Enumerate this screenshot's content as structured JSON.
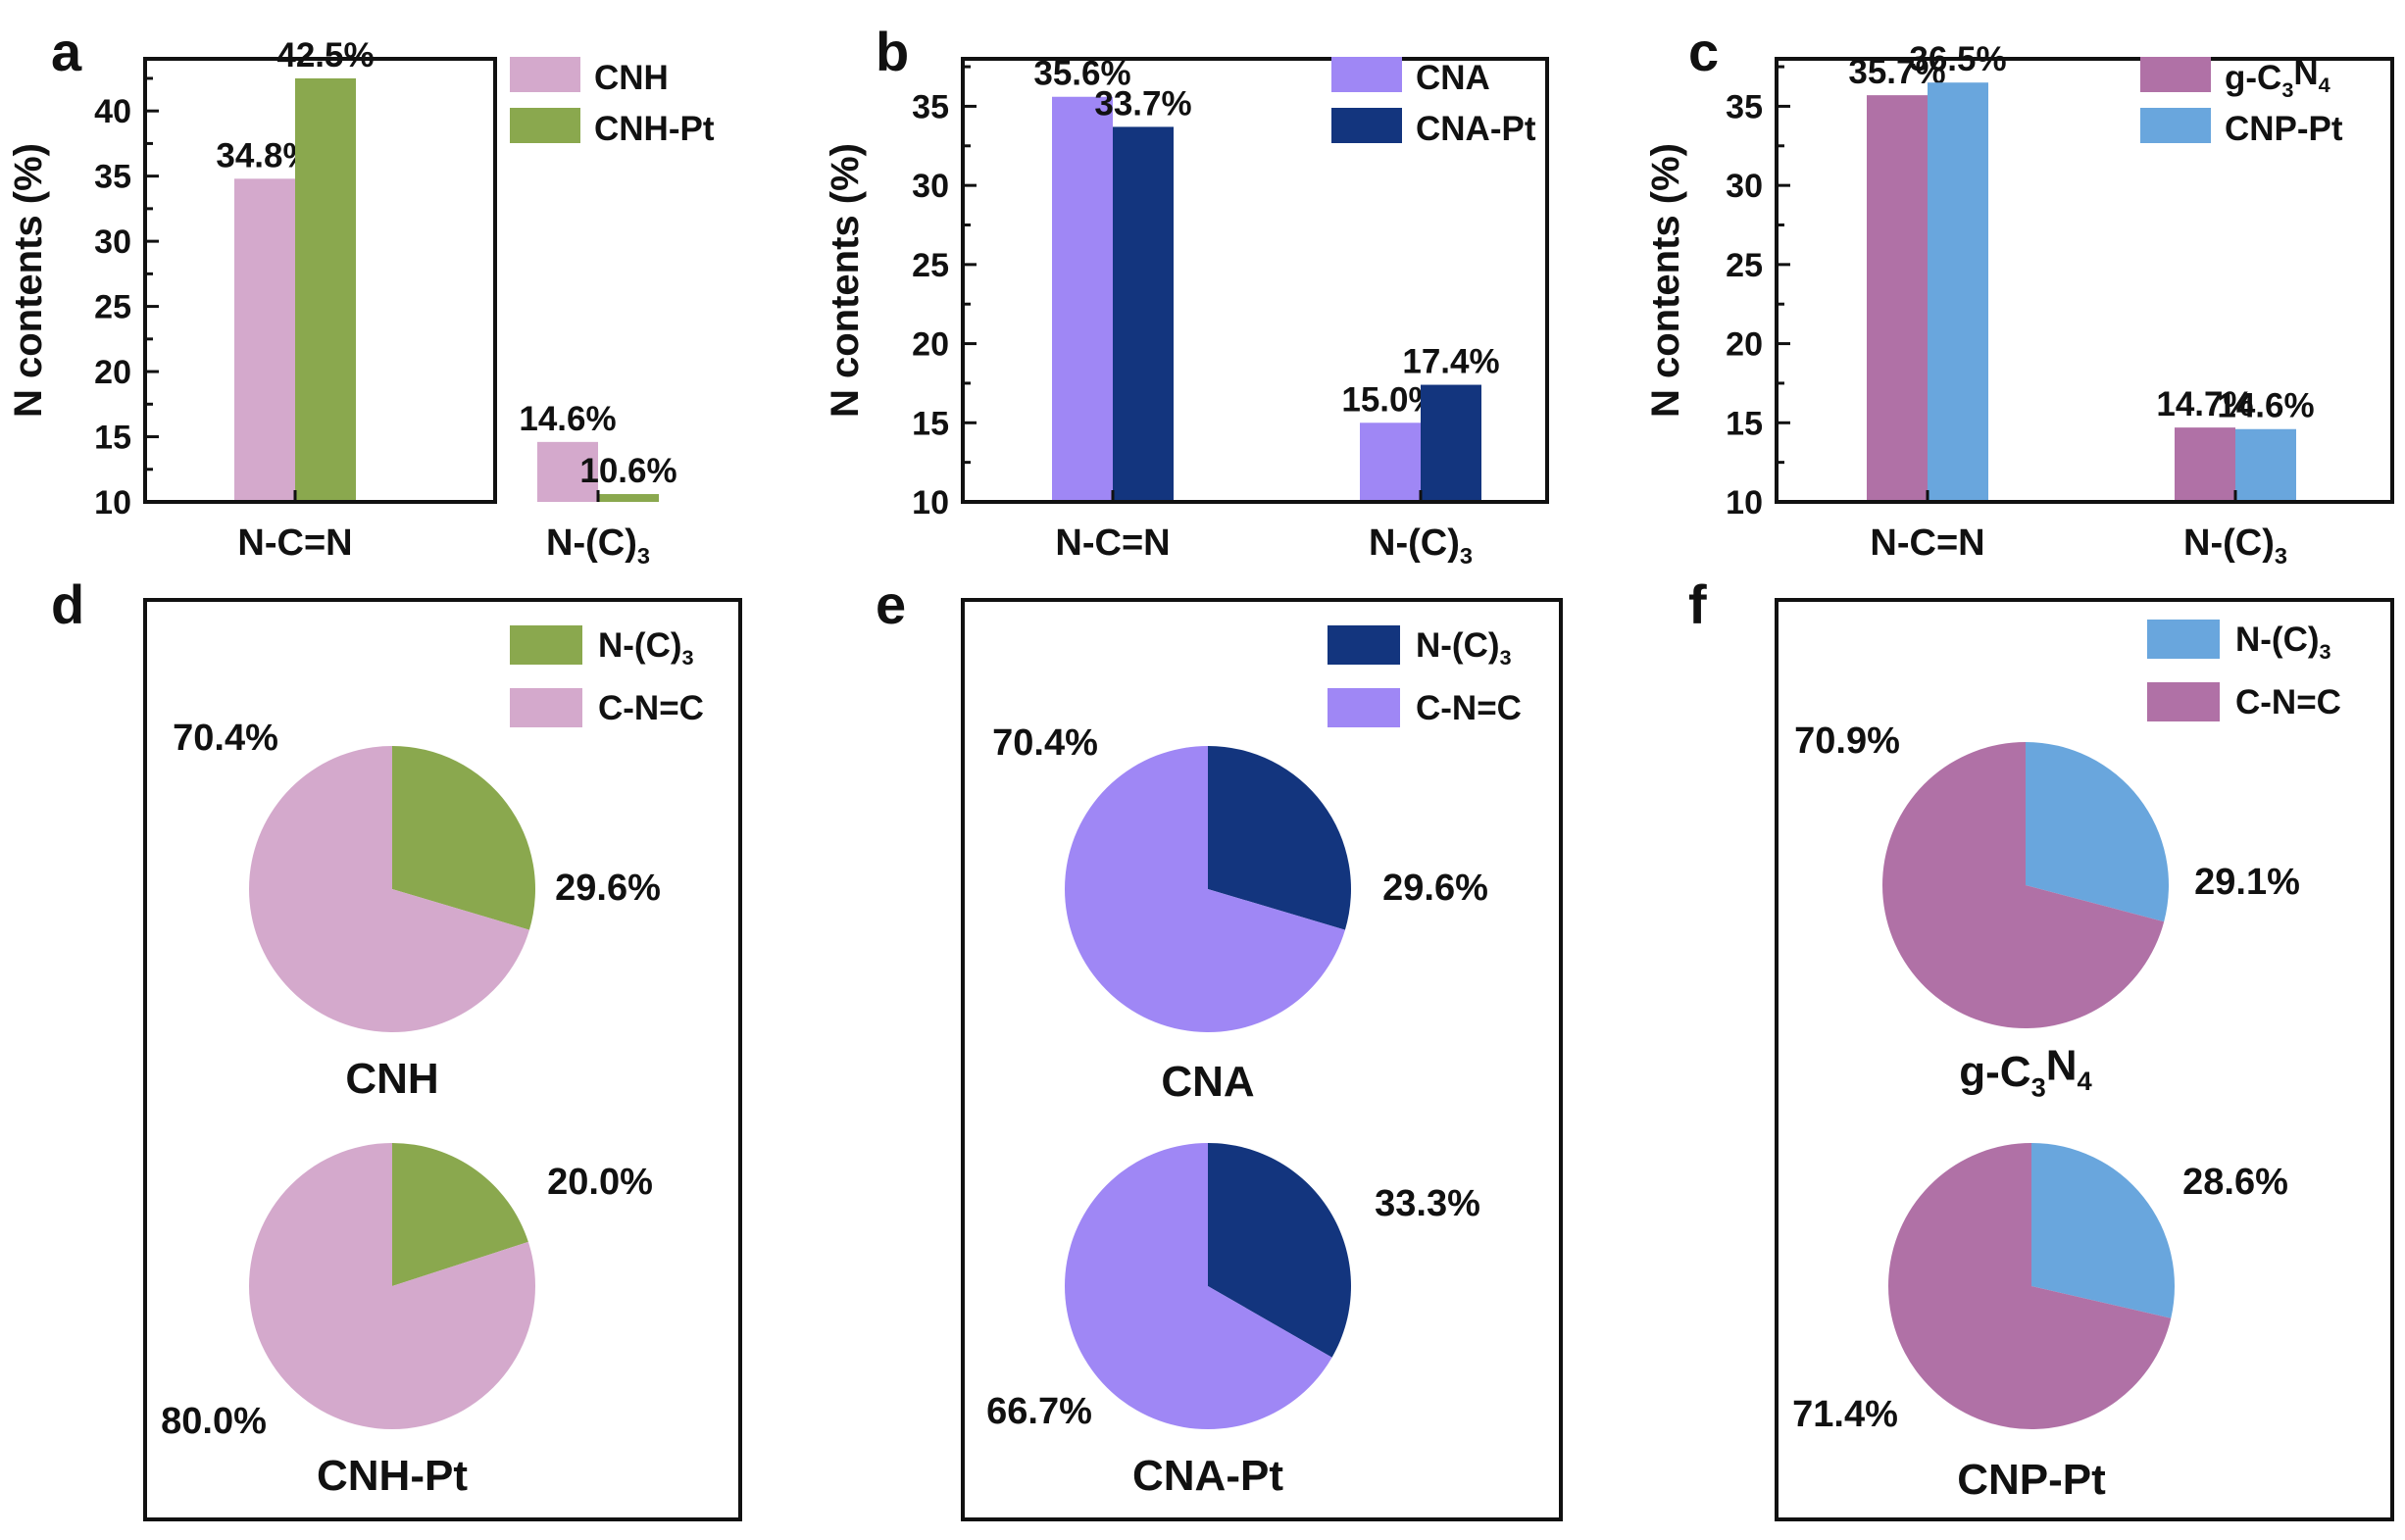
{
  "colors": {
    "CNH": "#d4a9cc",
    "CNH_Pt": "#8aa84e",
    "CNA": "#9f87f5",
    "CNA_Pt": "#13357e",
    "gC3N4": "#b071a6",
    "CNP_Pt": "#69a6dd"
  },
  "chart_data": [
    {
      "id": "a",
      "type": "bar",
      "panel_label": "a",
      "ylabel": "N contents (%)",
      "ylim": [
        10,
        44
      ],
      "yticks": [
        10,
        15,
        20,
        25,
        30,
        35,
        40
      ],
      "categories": [
        "N-C=N",
        "N-(C)3"
      ],
      "category_labels": [
        {
          "main": "N-C=N",
          "sub": ""
        },
        {
          "main": "N-(C)",
          "sub": "3"
        }
      ],
      "series": [
        {
          "name": "CNH",
          "legend": {
            "main": "CNH"
          },
          "color": "#d4a9cc",
          "values": [
            34.8,
            14.6
          ],
          "labels": [
            "34.8%",
            "14.6%"
          ]
        },
        {
          "name": "CNH-Pt",
          "legend": {
            "main": "CNH-Pt"
          },
          "color": "#8aa84e",
          "values": [
            42.5,
            10.6
          ],
          "labels": [
            "42.5%",
            "10.6%"
          ]
        }
      ]
    },
    {
      "id": "b",
      "type": "bar",
      "panel_label": "b",
      "ylabel": "N contents (%)",
      "ylim": [
        10,
        38
      ],
      "yticks": [
        10,
        15,
        20,
        25,
        30,
        35
      ],
      "categories": [
        "N-C=N",
        "N-(C)3"
      ],
      "category_labels": [
        {
          "main": "N-C=N",
          "sub": ""
        },
        {
          "main": "N-(C)",
          "sub": "3"
        }
      ],
      "series": [
        {
          "name": "CNA",
          "legend": {
            "main": "CNA"
          },
          "color": "#9f87f5",
          "values": [
            35.6,
            15.0
          ],
          "labels": [
            "35.6%",
            "15.0%"
          ]
        },
        {
          "name": "CNA-Pt",
          "legend": {
            "main": "CNA-Pt"
          },
          "color": "#13357e",
          "values": [
            33.7,
            17.4
          ],
          "labels": [
            "33.7%",
            "17.4%"
          ]
        }
      ]
    },
    {
      "id": "c",
      "type": "bar",
      "panel_label": "c",
      "ylabel": "N contents (%)",
      "ylim": [
        10,
        38
      ],
      "yticks": [
        10,
        15,
        20,
        25,
        30,
        35
      ],
      "categories": [
        "N-C=N",
        "N-(C)3"
      ],
      "category_labels": [
        {
          "main": "N-C=N",
          "sub": ""
        },
        {
          "main": "N-(C)",
          "sub": "3"
        }
      ],
      "series": [
        {
          "name": "g-C3N4",
          "legend": {
            "main": "g-C",
            "sub": "3",
            "main2": "N",
            "sub2": "4"
          },
          "color": "#b071a6",
          "values": [
            35.7,
            14.7
          ],
          "labels": [
            "35.7%",
            "14.7%"
          ]
        },
        {
          "name": "CNP-Pt",
          "legend": {
            "main": "CNP-Pt"
          },
          "color": "#69a6dd",
          "values": [
            36.5,
            14.6
          ],
          "labels": [
            "36.5%",
            "14.6%"
          ]
        }
      ]
    },
    {
      "id": "d",
      "type": "pie",
      "panel_label": "d",
      "legend": [
        {
          "name": "N-(C)3",
          "main": "N-(C)",
          "sub": "3",
          "color": "#8aa84e"
        },
        {
          "name": "C-N=C",
          "main": "C-N=C",
          "color": "#d4a9cc"
        }
      ],
      "pies": [
        {
          "title": {
            "main": "CNH"
          },
          "slices": [
            {
              "name": "N-(C)3",
              "value": 29.6,
              "label": "29.6%",
              "color": "#8aa84e"
            },
            {
              "name": "C-N=C",
              "value": 70.4,
              "label": "70.4%",
              "color": "#d4a9cc"
            }
          ]
        },
        {
          "title": {
            "main": "CNH-Pt"
          },
          "slices": [
            {
              "name": "N-(C)3",
              "value": 20.0,
              "label": "20.0%",
              "color": "#8aa84e"
            },
            {
              "name": "C-N=C",
              "value": 80.0,
              "label": "80.0%",
              "color": "#d4a9cc"
            }
          ]
        }
      ]
    },
    {
      "id": "e",
      "type": "pie",
      "panel_label": "e",
      "legend": [
        {
          "name": "N-(C)3",
          "main": "N-(C)",
          "sub": "3",
          "color": "#13357e"
        },
        {
          "name": "C-N=C",
          "main": "C-N=C",
          "color": "#9f87f5"
        }
      ],
      "pies": [
        {
          "title": {
            "main": "CNA"
          },
          "slices": [
            {
              "name": "N-(C)3",
              "value": 29.6,
              "label": "29.6%",
              "color": "#13357e"
            },
            {
              "name": "C-N=C",
              "value": 70.4,
              "label": "70.4%",
              "color": "#9f87f5"
            }
          ]
        },
        {
          "title": {
            "main": "CNA-Pt"
          },
          "slices": [
            {
              "name": "N-(C)3",
              "value": 33.3,
              "label": "33.3%",
              "color": "#13357e"
            },
            {
              "name": "C-N=C",
              "value": 66.7,
              "label": "66.7%",
              "color": "#9f87f5"
            }
          ]
        }
      ]
    },
    {
      "id": "f",
      "type": "pie",
      "panel_label": "f",
      "legend": [
        {
          "name": "N-(C)3",
          "main": "N-(C)",
          "sub": "3",
          "color": "#69a6dd"
        },
        {
          "name": "C-N=C",
          "main": "C-N=C",
          "color": "#b071a6"
        }
      ],
      "pies": [
        {
          "title": {
            "main": "g-C",
            "sub": "3",
            "main2": "N",
            "sub2": "4"
          },
          "slices": [
            {
              "name": "N-(C)3",
              "value": 29.1,
              "label": "29.1%",
              "color": "#69a6dd"
            },
            {
              "name": "C-N=C",
              "value": 70.9,
              "label": "70.9%",
              "color": "#b071a6"
            }
          ]
        },
        {
          "title": {
            "main": "CNP-Pt"
          },
          "slices": [
            {
              "name": "N-(C)3",
              "value": 28.6,
              "label": "28.6%",
              "color": "#69a6dd"
            },
            {
              "name": "C-N=C",
              "value": 71.4,
              "label": "71.4%",
              "color": "#b071a6"
            }
          ]
        }
      ]
    }
  ]
}
